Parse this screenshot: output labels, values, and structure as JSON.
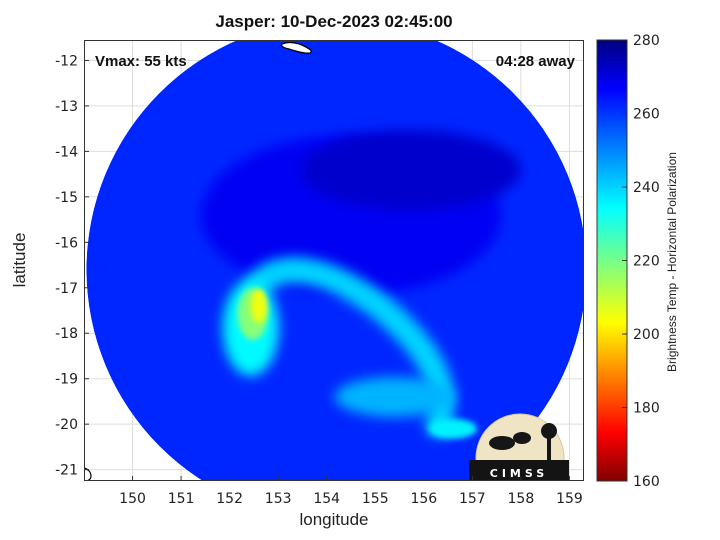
{
  "chart_data": {
    "type": "heatmap",
    "title": "Jasper: 10-Dec-2023 02:45:00",
    "annotations": {
      "vmax": "Vmax: 55 kts",
      "time_away": "04:28 away"
    },
    "xlabel": "longitude",
    "ylabel": "latitude",
    "xlim": [
      149.0,
      159.3
    ],
    "ylim": [
      -21.25,
      -11.55
    ],
    "x_ticks": [
      150,
      151,
      152,
      153,
      154,
      155,
      156,
      157,
      158,
      159
    ],
    "y_ticks": [
      -12,
      -13,
      -14,
      -15,
      -16,
      -17,
      -18,
      -19,
      -20,
      -21
    ],
    "colorbar": {
      "label": "Brightness Temp - Horizontal Polarization",
      "range": [
        160,
        280
      ],
      "ticks": [
        280,
        260,
        240,
        220,
        200,
        180,
        160
      ],
      "colormap": "jet"
    },
    "swath": {
      "center_lon": 154.2,
      "center_lat": -16.6,
      "radius_deg": 5.15
    },
    "background_tb": 262,
    "features": [
      {
        "name": "central dense core",
        "lon": 154.5,
        "lat": -15.4,
        "tb": 268
      },
      {
        "name": "western convective band",
        "lon": 152.6,
        "lat": -17.4,
        "tb": 205
      },
      {
        "name": "spiral rainband",
        "lon": 154.2,
        "lat": -17.9,
        "tb": 240
      },
      {
        "name": "southern rainband",
        "lon": 155.4,
        "lat": -19.4,
        "tb": 244
      },
      {
        "name": "southeast band",
        "lon": 156.6,
        "lat": -20.1,
        "tb": 236
      }
    ],
    "grid": true,
    "logo_text": "CIMSS"
  }
}
